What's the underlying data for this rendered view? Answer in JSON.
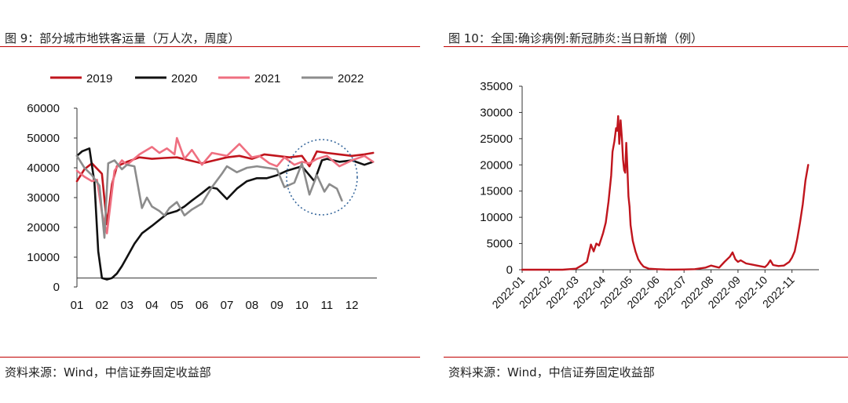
{
  "left": {
    "title": "图 9：部分城市地铁客运量（万人次，周度）",
    "source": "资料来源：Wind，中信证券固定收益部"
  },
  "right": {
    "title": "图 10：全国:确诊病例:新冠肺炎:当日新增（例）",
    "source": "资料来源：Wind，中信证券固定收益部"
  },
  "chart_data": [
    {
      "type": "line",
      "title": "图 9：部分城市地铁客运量（万人次，周度）",
      "xlabel": "",
      "ylabel": "",
      "x_ticks": [
        "01",
        "02",
        "03",
        "04",
        "05",
        "06",
        "07",
        "08",
        "09",
        "10",
        "11",
        "12"
      ],
      "y_ticks": [
        0,
        10000,
        20000,
        30000,
        40000,
        50000,
        60000
      ],
      "ylim": [
        0,
        60000
      ],
      "xlim": [
        1,
        13
      ],
      "grid": false,
      "legend_position": "top",
      "annotation": "dotted ellipse highlighting October–November 2022",
      "series": [
        {
          "name": "2019",
          "color": "#c0151d",
          "x": [
            1,
            1.3,
            1.6,
            2.0,
            2.2,
            2.4,
            2.6,
            3.0,
            3.5,
            4.0,
            4.5,
            5.0,
            5.5,
            6.0,
            6.5,
            7.0,
            7.5,
            8.0,
            8.5,
            9.0,
            9.5,
            10.0,
            10.3,
            10.6,
            11.0,
            11.5,
            12.0,
            12.5,
            12.85
          ],
          "y": [
            35500,
            39500,
            41500,
            38000,
            21000,
            34500,
            40500,
            42000,
            43500,
            43000,
            43300,
            43500,
            42500,
            41500,
            42500,
            43500,
            44000,
            43000,
            44500,
            44000,
            43500,
            44000,
            40500,
            45500,
            45000,
            44500,
            44000,
            44500,
            45000
          ]
        },
        {
          "name": "2020",
          "color": "#111111",
          "x": [
            1,
            1.2,
            1.5,
            1.7,
            1.85,
            2.0,
            2.2,
            2.4,
            2.6,
            2.8,
            3.0,
            3.3,
            3.6,
            4.0,
            4.3,
            4.6,
            5.0,
            5.3,
            5.6,
            6.0,
            6.3,
            6.6,
            7.0,
            7.4,
            7.8,
            8.2,
            8.6,
            9.0,
            9.4,
            9.8,
            10.0,
            10.2,
            10.5,
            10.8,
            11.0,
            11.5,
            12.0,
            12.5,
            12.85
          ],
          "y": [
            44000,
            45500,
            46500,
            35000,
            12000,
            3000,
            2500,
            3000,
            4500,
            7000,
            10000,
            14500,
            18000,
            20500,
            22500,
            24500,
            25500,
            27000,
            29000,
            31500,
            33500,
            33000,
            29500,
            33000,
            35500,
            36500,
            36500,
            37500,
            39000,
            40000,
            40500,
            38500,
            35500,
            42500,
            43000,
            42000,
            42500,
            41000,
            42000
          ]
        },
        {
          "name": "2021",
          "color": "#ef6f80",
          "x": [
            1,
            1.3,
            1.6,
            1.8,
            2.0,
            2.2,
            2.5,
            2.8,
            3.0,
            3.5,
            4.0,
            4.3,
            4.6,
            4.9,
            5.0,
            5.3,
            5.6,
            6.0,
            6.4,
            7.0,
            7.5,
            8.0,
            8.3,
            8.7,
            9.0,
            9.3,
            9.7,
            10.0,
            10.3,
            10.6,
            11.0,
            11.5,
            12.0,
            12.5,
            12.85
          ],
          "y": [
            39000,
            37000,
            35500,
            36000,
            25000,
            18000,
            39000,
            42500,
            41000,
            44500,
            47000,
            45000,
            46500,
            44500,
            50000,
            43000,
            46000,
            41000,
            45000,
            44000,
            48000,
            43500,
            44000,
            41500,
            40500,
            43500,
            41000,
            42000,
            41500,
            43000,
            44000,
            40500,
            42500,
            44000,
            42000
          ]
        },
        {
          "name": "2022",
          "color": "#8c8c8c",
          "x": [
            1,
            1.3,
            1.6,
            1.9,
            2.1,
            2.25,
            2.5,
            2.8,
            3.0,
            3.3,
            3.6,
            3.8,
            4.0,
            4.3,
            4.5,
            4.7,
            5.0,
            5.3,
            5.6,
            6.0,
            6.4,
            6.8,
            7.0,
            7.4,
            7.8,
            8.2,
            8.6,
            9.0,
            9.3,
            9.7,
            10.0,
            10.3,
            10.6,
            10.9,
            11.1,
            11.4,
            11.6
          ],
          "y": [
            44000,
            40000,
            37500,
            34000,
            16500,
            41500,
            42500,
            39500,
            41000,
            40500,
            26500,
            30000,
            27000,
            25500,
            24000,
            26500,
            28500,
            24000,
            26000,
            28000,
            33500,
            38000,
            40500,
            38500,
            40000,
            40500,
            40000,
            39500,
            33500,
            35000,
            41500,
            31000,
            37500,
            32000,
            34500,
            33000,
            29000
          ]
        }
      ]
    },
    {
      "type": "line",
      "title": "图 10：全国:确诊病例:新冠肺炎:当日新增（例）",
      "xlabel": "",
      "ylabel": "",
      "x_ticks": [
        "2022-01",
        "2022-02",
        "2022-03",
        "2022-04",
        "2022-05",
        "2022-06",
        "2022-07",
        "2022-08",
        "2022-09",
        "2022-10",
        "2022-11"
      ],
      "y_ticks": [
        0,
        5000,
        10000,
        15000,
        20000,
        25000,
        30000,
        35000
      ],
      "ylim": [
        0,
        35000
      ],
      "xlim": [
        0,
        11
      ],
      "grid": false,
      "series": [
        {
          "name": "",
          "color": "#c0151d",
          "x": [
            0,
            1,
            1.5,
            2,
            2.2,
            2.4,
            2.55,
            2.65,
            2.75,
            2.85,
            3.0,
            3.1,
            3.2,
            3.3,
            3.35,
            3.42,
            3.48,
            3.52,
            3.56,
            3.6,
            3.65,
            3.7,
            3.74,
            3.78,
            3.82,
            3.86,
            3.9,
            3.94,
            3.98,
            4.02,
            4.1,
            4.2,
            4.3,
            4.4,
            4.5,
            4.7,
            5.0,
            5.3,
            5.6,
            6.0,
            6.4,
            6.8,
            7.0,
            7.3,
            7.5,
            7.7,
            7.8,
            7.9,
            8.0,
            8.1,
            8.3,
            8.5,
            8.7,
            9.0,
            9.1,
            9.2,
            9.3,
            9.5,
            9.7,
            9.9,
            10.0,
            10.1,
            10.2,
            10.3,
            10.4,
            10.5,
            10.6
          ],
          "y": [
            0,
            0,
            0,
            200,
            800,
            1500,
            4800,
            3500,
            5000,
            4600,
            7000,
            9000,
            13000,
            18000,
            22500,
            24500,
            27000,
            26500,
            29300,
            24000,
            28500,
            25000,
            21000,
            19000,
            18500,
            24200,
            19500,
            14000,
            12000,
            8500,
            5500,
            3500,
            2000,
            1200,
            600,
            200,
            100,
            50,
            30,
            50,
            100,
            400,
            800,
            400,
            1500,
            2500,
            3300,
            2000,
            1500,
            1800,
            1200,
            1000,
            800,
            500,
            1000,
            1800,
            900,
            700,
            800,
            1500,
            2300,
            3500,
            6000,
            9000,
            12500,
            17000,
            20000
          ]
        }
      ]
    }
  ]
}
